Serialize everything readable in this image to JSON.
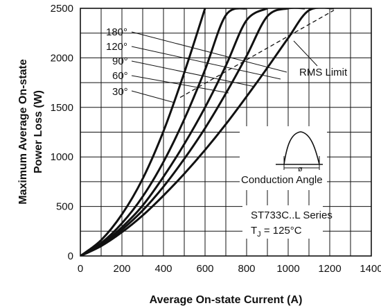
{
  "chart_data": {
    "type": "line",
    "xlabel": "Average On-state Current (A)",
    "ylabel_line1": "Maximum Average On-state",
    "ylabel_line2": "Power Loss (W)",
    "xlim": [
      0,
      1400
    ],
    "ylim": [
      0,
      2500
    ],
    "x_ticks": [
      "0",
      "200",
      "400",
      "600",
      "800",
      "1000",
      "1200",
      "1400"
    ],
    "y_ticks": [
      "0",
      "500",
      "1000",
      "1500",
      "2000",
      "2500"
    ],
    "grid": true,
    "series": [
      {
        "name": "30°",
        "x": [
          0,
          100,
          200,
          300,
          400,
          500,
          600
        ],
        "y": [
          0,
          160,
          420,
          780,
          1260,
          1850,
          2500
        ]
      },
      {
        "name": "60°",
        "x": [
          0,
          100,
          200,
          300,
          400,
          500,
          600,
          700,
          800
        ],
        "y": [
          0,
          130,
          330,
          600,
          950,
          1380,
          1880,
          2430,
          2500
        ]
      },
      {
        "name": "90°",
        "x": [
          0,
          100,
          200,
          300,
          400,
          500,
          600,
          700,
          800,
          900
        ],
        "y": [
          0,
          115,
          290,
          510,
          800,
          1130,
          1500,
          1920,
          2380,
          2500
        ]
      },
      {
        "name": "120°",
        "x": [
          0,
          100,
          200,
          300,
          400,
          500,
          600,
          700,
          800,
          900,
          1000,
          1080
        ],
        "y": [
          0,
          105,
          265,
          460,
          700,
          980,
          1290,
          1640,
          2020,
          2420,
          2500,
          2500
        ]
      },
      {
        "name": "180°",
        "x": [
          0,
          100,
          200,
          300,
          400,
          500,
          600,
          700,
          800,
          900,
          1000,
          1100,
          1220
        ],
        "y": [
          0,
          100,
          240,
          410,
          610,
          830,
          1070,
          1330,
          1610,
          1900,
          2200,
          2480,
          2500
        ]
      }
    ],
    "rms_limit": {
      "name": "RMS Limit",
      "x": [
        480,
        1220
      ],
      "y": [
        1600,
        2480
      ]
    },
    "annotations": {
      "angles": [
        "180°",
        "120°",
        "90°",
        "60°",
        "30°"
      ],
      "rms_label": "RMS Limit",
      "conduction_label": "Conduction Angle",
      "conduction_symbol": "ø",
      "series_label": "ST733C..L Series",
      "tj_prefix": "T",
      "tj_sub": "J",
      "tj_suffix": " = 125°C"
    }
  }
}
